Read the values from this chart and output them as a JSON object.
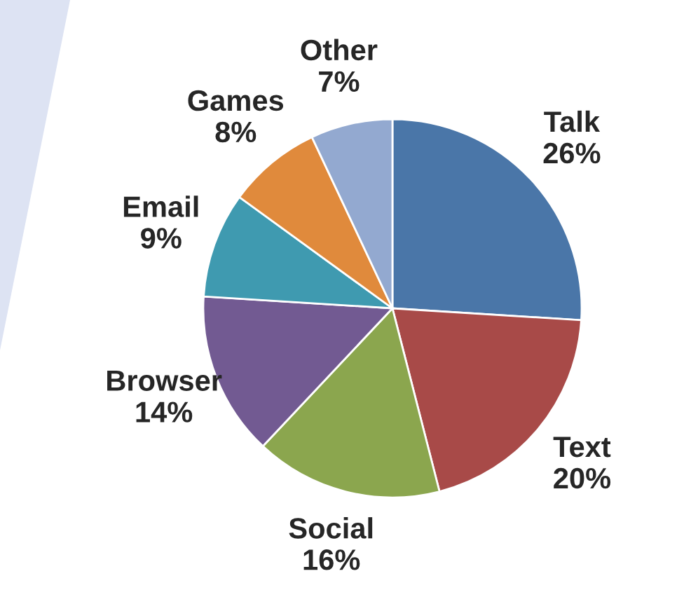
{
  "chart_data": {
    "type": "pie",
    "categories": [
      "Talk",
      "Text",
      "Social",
      "Browser",
      "Email",
      "Games",
      "Other"
    ],
    "values": [
      26,
      20,
      16,
      14,
      9,
      8,
      7
    ],
    "value_labels": [
      "26%",
      "20%",
      "16%",
      "14%",
      "9%",
      "8%",
      "7%"
    ],
    "colors": [
      "#4a76a8",
      "#a84a48",
      "#8ba64e",
      "#725a92",
      "#3f9ab0",
      "#e08a3c",
      "#93a9d0"
    ]
  }
}
